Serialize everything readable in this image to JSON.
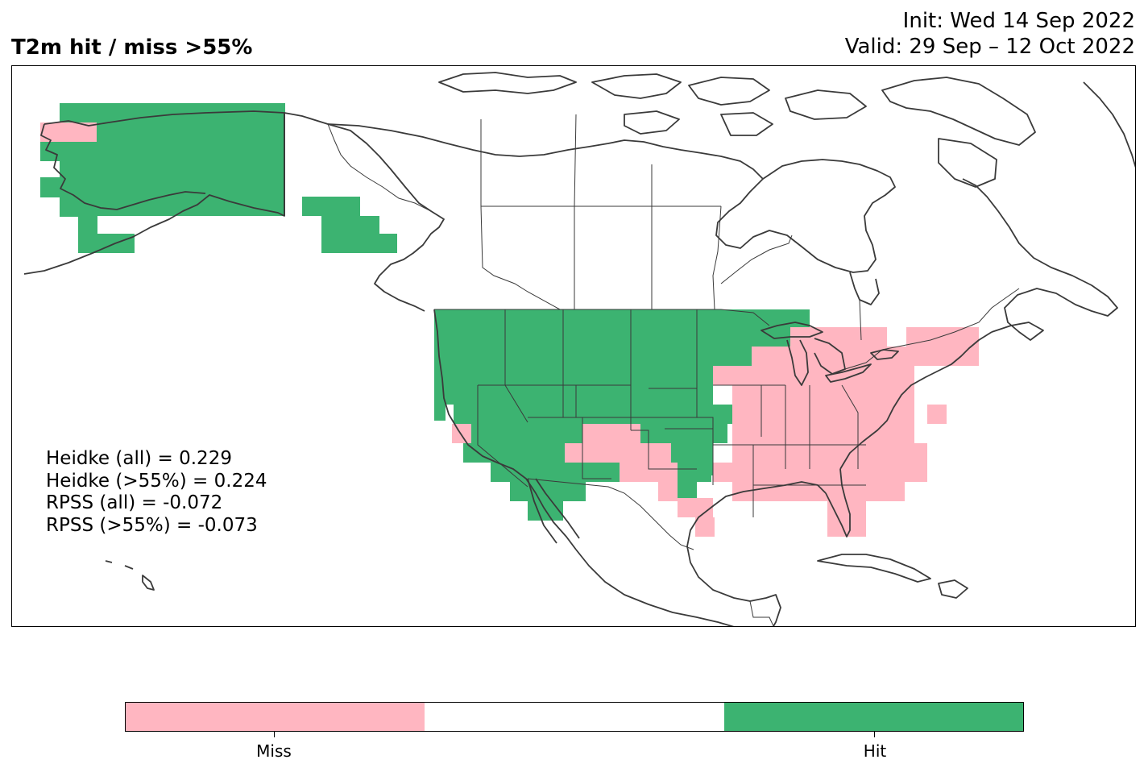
{
  "header": {
    "title": "T2m hit / miss  >55%",
    "init": "Init: Wed 14 Sep 2022",
    "valid": "Valid: 29 Sep – 12 Oct 2022"
  },
  "stats": {
    "heidke_all": "Heidke (all) = 0.229",
    "heidke_55": "Heidke (>55%) = 0.224",
    "rpss_all": "RPSS (all) = -0.072",
    "rpss_55": "RPSS (>55%) = -0.073"
  },
  "colorbar": {
    "colors": {
      "miss": "#ffb6c1",
      "neutral": "#ffffff",
      "hit": "#3cb371"
    },
    "labels": {
      "miss": "Miss",
      "hit": "Hit"
    }
  },
  "map": {
    "region": "North America",
    "outline_color": "#3a3a3a",
    "hit_regions": [
      "Alaska",
      "Alaska panhandle",
      "Western United States",
      "Northern Great Plains",
      "Upper Midwest"
    ],
    "miss_regions": [
      "Western Alaska coast",
      "Southern California coast",
      "New Mexico",
      "Texas",
      "Great Lakes",
      "Ohio Valley",
      "Southeast United States",
      "Florida",
      "Mid-Atlantic",
      "Northeast United States"
    ]
  }
}
